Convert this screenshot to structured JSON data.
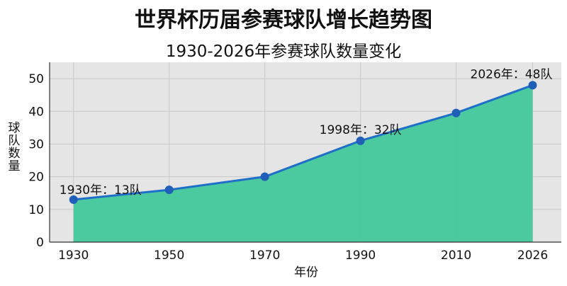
{
  "chart_data": {
    "type": "area",
    "title": "世界杯历届参赛球队增长趋势图",
    "subtitle": "1930-2026年参赛球队数量变化",
    "xlabel": "年份",
    "ylabel": "球队数量",
    "x": [
      1930,
      1950,
      1970,
      1990,
      2010,
      2026
    ],
    "x_tick_labels": [
      "1930",
      "1950",
      "1970",
      "1990",
      "2010",
      "2026"
    ],
    "y_ticks": [
      0,
      10,
      20,
      30,
      40,
      50
    ],
    "y_tick_labels": [
      "0",
      "10",
      "20",
      "30",
      "40",
      "50"
    ],
    "ylim": [
      0,
      55
    ],
    "series": [
      {
        "values": [
          13,
          16,
          20,
          31,
          39.5,
          48
        ],
        "line_color": "#1f6fc9",
        "fill_color": "#3ec89a",
        "marker_color": "#1f5fb8"
      }
    ],
    "annotations": [
      {
        "x": 1930,
        "y": 13,
        "text": "1930年：13队"
      },
      {
        "x": 1990,
        "y": 31,
        "text": "1998年：32队"
      },
      {
        "x": 2026,
        "y": 48,
        "text": "2026年：48队"
      }
    ],
    "grid": true,
    "plot_background": "#e5e5e5"
  }
}
